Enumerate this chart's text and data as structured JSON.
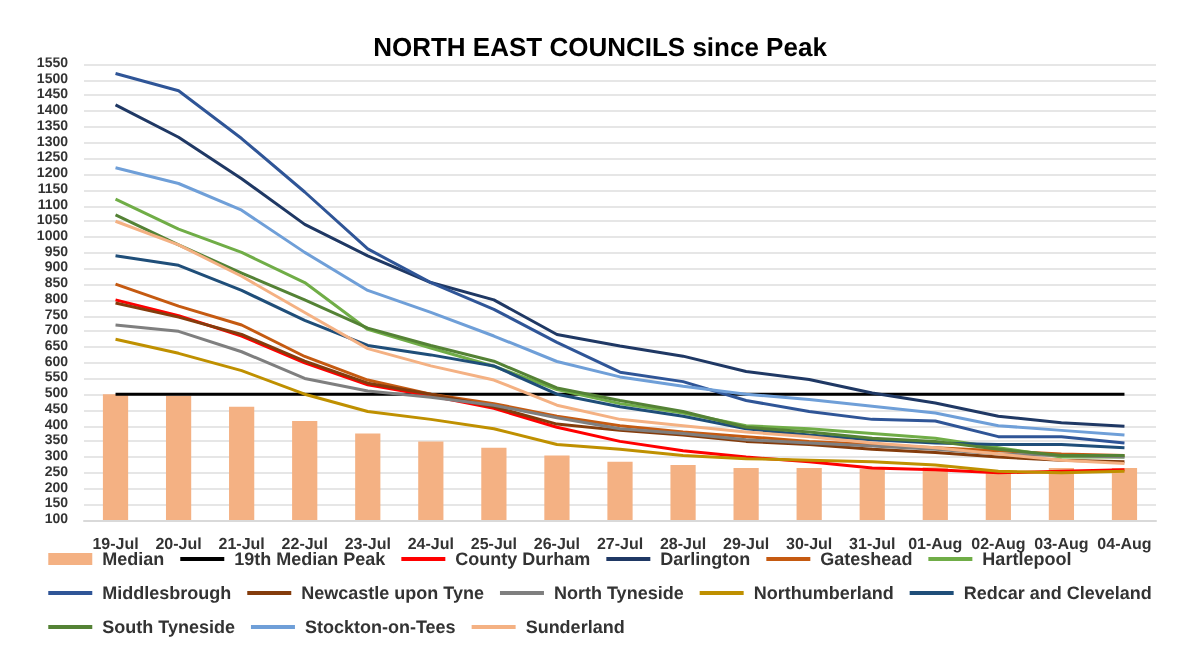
{
  "chart_data": {
    "type": "line",
    "title": "NORTH EAST COUNCILS since Peak",
    "categories": [
      "19-Jul",
      "20-Jul",
      "21-Jul",
      "22-Jul",
      "23-Jul",
      "24-Jul",
      "25-Jul",
      "26-Jul",
      "27-Jul",
      "28-Jul",
      "29-Jul",
      "30-Jul",
      "31-Jul",
      "01-Aug",
      "02-Aug",
      "03-Aug",
      "04-Aug"
    ],
    "ylim": [
      100,
      1550
    ],
    "yticks": [
      100,
      150,
      200,
      250,
      300,
      350,
      400,
      450,
      500,
      550,
      600,
      650,
      700,
      750,
      800,
      850,
      900,
      950,
      1000,
      1050,
      1100,
      1150,
      1200,
      1250,
      1300,
      1350,
      1400,
      1450,
      1500,
      1550
    ],
    "grid": "y",
    "legend": "bottom",
    "marker": "none",
    "line_style": "solid",
    "series": [
      {
        "name": "Median",
        "type": "bar",
        "color": "#f4b183",
        "values": [
          500,
          495,
          460,
          415,
          375,
          350,
          330,
          305,
          285,
          275,
          265,
          265,
          262,
          268,
          255,
          265,
          265
        ]
      },
      {
        "name": "19th Median Peak",
        "color": "#000000",
        "values": [
          500,
          500,
          500,
          500,
          500,
          500,
          500,
          500,
          500,
          500,
          500,
          500,
          500,
          500,
          500,
          500,
          500
        ]
      },
      {
        "name": "County Durham",
        "color": "#ff0000",
        "values": [
          800,
          750,
          685,
          600,
          530,
          495,
          455,
          395,
          350,
          320,
          300,
          285,
          265,
          260,
          250,
          255,
          260
        ]
      },
      {
        "name": "Darlington",
        "color": "#1f3864",
        "values": [
          1420,
          1317,
          1185,
          1040,
          940,
          855,
          800,
          690,
          653,
          621,
          572,
          547,
          504,
          472,
          430,
          409,
          398
        ]
      },
      {
        "name": "Gateshead",
        "color": "#c55a11",
        "values": [
          850,
          780,
          720,
          620,
          545,
          500,
          470,
          430,
          400,
          380,
          365,
          350,
          340,
          330,
          320,
          310,
          305
        ]
      },
      {
        "name": "Hartlepool",
        "color": "#70ad47",
        "values": [
          1120,
          1025,
          951,
          855,
          706,
          647,
          589,
          515,
          470,
          440,
          400,
          390,
          375,
          360,
          330,
          300,
          300
        ]
      },
      {
        "name": "Middlesbrough",
        "color": "#2f5597",
        "values": [
          1520,
          1465,
          1313,
          1143,
          962,
          855,
          770,
          665,
          570,
          540,
          480,
          445,
          420,
          415,
          365,
          365,
          345
        ]
      },
      {
        "name": "Newcastle upon Tyne",
        "color": "#843c0c",
        "values": [
          790,
          745,
          690,
          605,
          535,
          500,
          460,
          405,
          385,
          370,
          350,
          340,
          325,
          315,
          300,
          290,
          285
        ]
      },
      {
        "name": "North Tyneside",
        "color": "#7f7f7f",
        "values": [
          720,
          700,
          635,
          550,
          510,
          490,
          465,
          425,
          390,
          375,
          355,
          345,
          335,
          325,
          310,
          305,
          300
        ]
      },
      {
        "name": "Northumberland",
        "color": "#bf9000",
        "values": [
          675,
          630,
          575,
          500,
          445,
          420,
          390,
          340,
          325,
          305,
          295,
          290,
          285,
          275,
          255,
          250,
          255
        ]
      },
      {
        "name": "Redcar and Cleveland",
        "color": "#1f4e79",
        "values": [
          940,
          910,
          830,
          735,
          655,
          625,
          590,
          500,
          460,
          430,
          390,
          370,
          355,
          345,
          340,
          340,
          330
        ]
      },
      {
        "name": "South Tyneside",
        "color": "#548235",
        "values": [
          1070,
          975,
          885,
          800,
          710,
          655,
          605,
          520,
          480,
          445,
          395,
          380,
          360,
          350,
          325,
          305,
          305
        ]
      },
      {
        "name": "Stockton-on-Tees",
        "color": "#6f9fd8",
        "values": [
          1220,
          1170,
          1085,
          951,
          830,
          760,
          685,
          604,
          555,
          525,
          500,
          483,
          462,
          440,
          400,
          385,
          370
        ]
      },
      {
        "name": "Sunderland",
        "color": "#f4b183",
        "values": [
          1050,
          975,
          875,
          760,
          645,
          590,
          545,
          465,
          420,
          400,
          380,
          365,
          345,
          330,
          310,
          290,
          280
        ]
      }
    ]
  }
}
